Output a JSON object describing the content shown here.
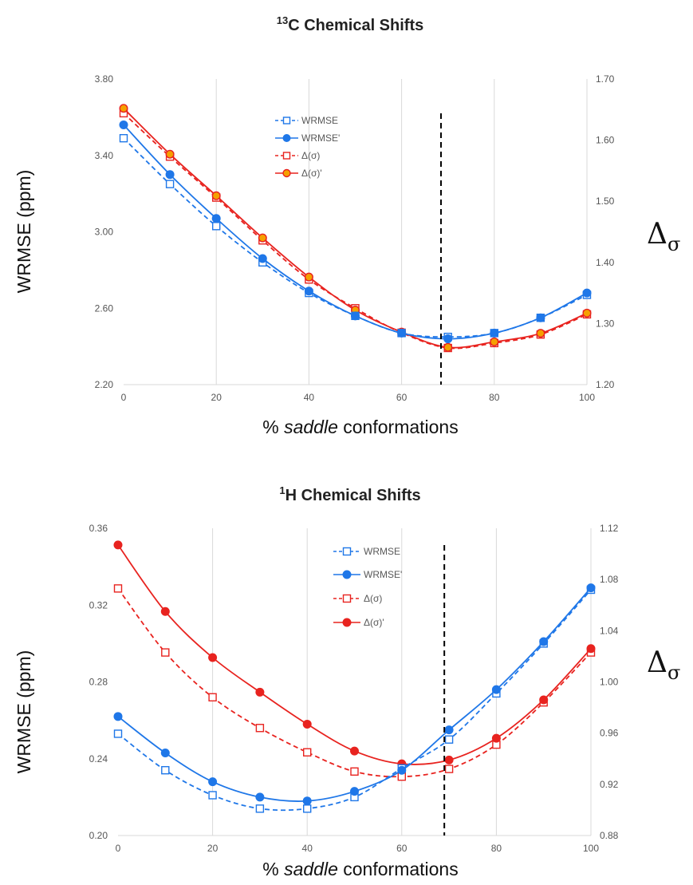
{
  "chart_data": [
    {
      "type": "line",
      "title": {
        "sup": "13",
        "main": "C Chemical Shifts"
      },
      "xlabel": {
        "pre": "% ",
        "italic": "saddle",
        "post": " conformations"
      },
      "ylabel": "WRMSE (ppm)",
      "y2label": {
        "main": "Δ",
        "sub": "σ"
      },
      "x_ticks": [
        0,
        20,
        40,
        60,
        80,
        100
      ],
      "xlim": [
        0,
        100
      ],
      "ylim": [
        2.2,
        3.8
      ],
      "y_ticks": [
        "2.20",
        "2.60",
        "3.00",
        "3.40",
        "3.80"
      ],
      "y2lim": [
        1.2,
        1.7
      ],
      "y2_ticks": [
        "1.20",
        "1.30",
        "1.40",
        "1.50",
        "1.60",
        "1.70"
      ],
      "vline_x": 68.5,
      "grid": "vertical",
      "legend_position": "upper-middle",
      "x": [
        0,
        10,
        20,
        30,
        40,
        50,
        60,
        70,
        80,
        90,
        100
      ],
      "series": [
        {
          "name": "WRMSE",
          "axis": "left",
          "style": "dashed",
          "marker": "open-square",
          "color": "#1F77E8",
          "values": [
            3.49,
            3.25,
            3.03,
            2.84,
            2.68,
            2.56,
            2.47,
            2.45,
            2.47,
            2.55,
            2.67
          ]
        },
        {
          "name": "WRMSE'",
          "axis": "left",
          "style": "solid",
          "marker": "filled-circle",
          "color": "#1F77E8",
          "values": [
            3.56,
            3.3,
            3.07,
            2.86,
            2.69,
            2.56,
            2.47,
            2.44,
            2.47,
            2.55,
            2.68
          ]
        },
        {
          "name": "Δ(σ)",
          "axis": "right",
          "style": "dashed",
          "marker": "open-square",
          "color": "#E8231F",
          "values": [
            1.644,
            1.573,
            1.506,
            1.436,
            1.372,
            1.325,
            1.285,
            1.26,
            1.268,
            1.282,
            1.315
          ]
        },
        {
          "name": "Δ(σ)'",
          "axis": "right",
          "style": "solid",
          "marker": "filled-circle",
          "color": "#E8231F",
          "fill": "#F5A000",
          "values": [
            1.652,
            1.577,
            1.509,
            1.44,
            1.376,
            1.322,
            1.286,
            1.261,
            1.27,
            1.284,
            1.317
          ]
        }
      ]
    },
    {
      "type": "line",
      "title": {
        "sup": "1",
        "main": "H Chemical Shifts"
      },
      "xlabel": {
        "pre": "% ",
        "italic": "saddle",
        "post": " conformations"
      },
      "ylabel": "WRMSE (ppm)",
      "y2label": {
        "main": "Δ",
        "sub": "σ"
      },
      "x_ticks": [
        0,
        20,
        40,
        60,
        80,
        100
      ],
      "xlim": [
        0,
        100
      ],
      "ylim": [
        0.2,
        0.36
      ],
      "y_ticks": [
        "0.20",
        "0.24",
        "0.28",
        "0.32",
        "0.36"
      ],
      "y2lim": [
        0.88,
        1.12
      ],
      "y2_ticks": [
        "0.88",
        "0.92",
        "0.96",
        "1.00",
        "1.04",
        "1.08",
        "1.12"
      ],
      "vline_x": 69,
      "grid": "vertical",
      "legend_position": "upper-middle",
      "x": [
        0,
        10,
        20,
        30,
        40,
        50,
        60,
        70,
        80,
        90,
        100
      ],
      "series": [
        {
          "name": "WRMSE",
          "axis": "left",
          "style": "dashed",
          "marker": "open-square",
          "color": "#1F77E8",
          "values": [
            0.253,
            0.234,
            0.221,
            0.214,
            0.214,
            0.22,
            0.235,
            0.25,
            0.274,
            0.3,
            0.328
          ]
        },
        {
          "name": "WRMSE'",
          "axis": "left",
          "style": "solid",
          "marker": "filled-circle",
          "color": "#1F77E8",
          "values": [
            0.262,
            0.243,
            0.228,
            0.22,
            0.218,
            0.223,
            0.234,
            0.255,
            0.276,
            0.301,
            0.329
          ]
        },
        {
          "name": "Δ(σ)",
          "axis": "right",
          "style": "dashed",
          "marker": "open-square",
          "color": "#E8231F",
          "values": [
            1.073,
            1.023,
            0.988,
            0.964,
            0.945,
            0.93,
            0.926,
            0.932,
            0.951,
            0.984,
            1.023
          ]
        },
        {
          "name": "Δ(σ)'",
          "axis": "right",
          "style": "solid",
          "marker": "filled-circle",
          "color": "#E8231F",
          "values": [
            1.107,
            1.055,
            1.019,
            0.992,
            0.967,
            0.946,
            0.936,
            0.939,
            0.956,
            0.986,
            1.026
          ]
        }
      ]
    }
  ]
}
